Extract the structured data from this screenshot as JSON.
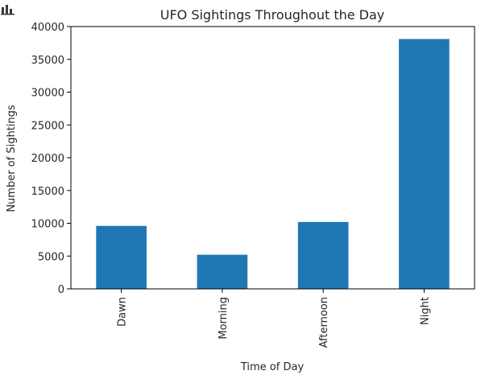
{
  "chart_data": {
    "type": "bar",
    "title": "UFO Sightings Throughout the Day",
    "xlabel": "Time of Day",
    "ylabel": "Number of Sightings",
    "categories": [
      "Dawn",
      "Morning",
      "Afternoon",
      "Night"
    ],
    "values": [
      9600,
      5200,
      10200,
      38100
    ],
    "ylim": [
      0,
      40000
    ],
    "yticks": [
      0,
      5000,
      10000,
      15000,
      20000,
      25000,
      30000,
      35000,
      40000
    ],
    "ytick_labels": [
      "0",
      "5000",
      "10000",
      "15000",
      "20000",
      "25000",
      "30000",
      "35000",
      "40000"
    ],
    "bar_color": "#1f77b4",
    "grid": false,
    "legend": "none"
  },
  "toolbar": {
    "icon": "bar-chart-icon"
  }
}
